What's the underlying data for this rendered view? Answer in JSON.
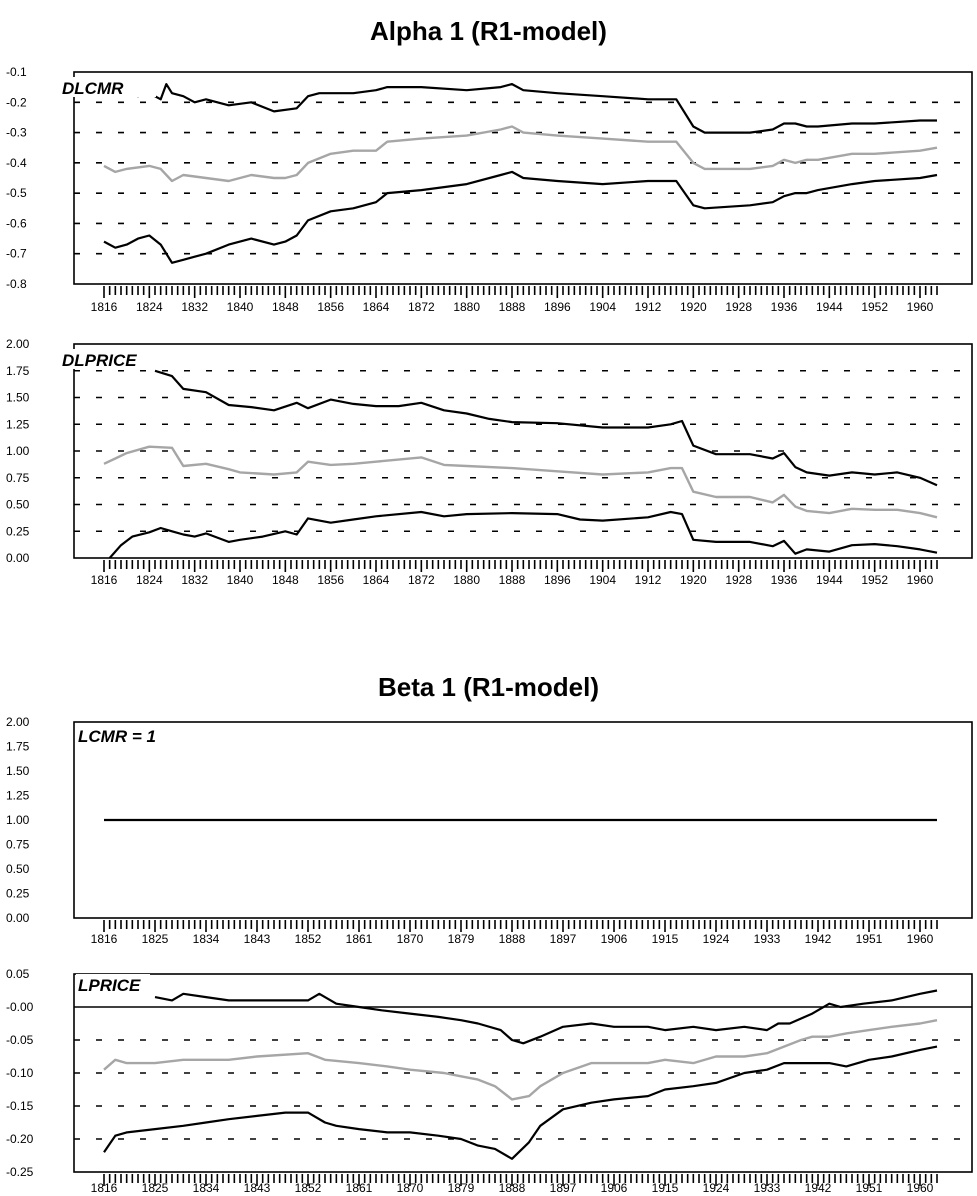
{
  "titles": {
    "alpha": "Alpha 1 (R1-model)",
    "beta": "Beta 1 (R1-model)"
  },
  "colors": {
    "estimate": "#a6a6a6",
    "band": "#000000"
  },
  "chart_data": [
    {
      "type": "line",
      "panel_label": "DLCMR",
      "ylim": [
        -0.8,
        -0.1
      ],
      "yticks": [
        "-0.1",
        "-0.2",
        "-0.3",
        "-0.4",
        "-0.5",
        "-0.6",
        "-0.7",
        "-0.8"
      ],
      "ytick_values": [
        -0.1,
        -0.2,
        -0.3,
        -0.4,
        -0.5,
        -0.6,
        -0.7,
        -0.8
      ],
      "dashed_gridlines": [
        -0.2,
        -0.3,
        -0.4,
        -0.5,
        -0.6,
        -0.7
      ],
      "xlim": [
        1816,
        1963
      ],
      "xticks": [
        "1816",
        "1824",
        "1832",
        "1840",
        "1848",
        "1856",
        "1864",
        "1872",
        "1880",
        "1888",
        "1896",
        "1904",
        "1912",
        "1920",
        "1928",
        "1936",
        "1944",
        "1952",
        "1960"
      ],
      "xtick_values": [
        1816,
        1824,
        1832,
        1840,
        1848,
        1856,
        1864,
        1872,
        1880,
        1888,
        1896,
        1904,
        1912,
        1920,
        1928,
        1936,
        1944,
        1952,
        1960
      ],
      "series": [
        {
          "role": "upper",
          "x": [
            1814,
            1818,
            1820,
            1822,
            1824,
            1826,
            1827,
            1828,
            1830,
            1832,
            1834,
            1838,
            1842,
            1846,
            1850,
            1852,
            1854,
            1856,
            1860,
            1864,
            1866,
            1872,
            1880,
            1886,
            1888,
            1890,
            1896,
            1904,
            1912,
            1917,
            1920,
            1922,
            1930,
            1934,
            1936,
            1938,
            1940,
            1942,
            1948,
            1952,
            1960,
            1963
          ],
          "y": [
            -0.16,
            -0.17,
            -0.17,
            -0.18,
            -0.17,
            -0.19,
            -0.14,
            -0.17,
            -0.18,
            -0.2,
            -0.19,
            -0.21,
            -0.2,
            -0.23,
            -0.22,
            -0.18,
            -0.17,
            -0.17,
            -0.17,
            -0.16,
            -0.15,
            -0.15,
            -0.16,
            -0.15,
            -0.14,
            -0.16,
            -0.17,
            -0.18,
            -0.19,
            -0.19,
            -0.28,
            -0.3,
            -0.3,
            -0.29,
            -0.27,
            -0.27,
            -0.28,
            -0.28,
            -0.27,
            -0.27,
            -0.26,
            -0.26
          ]
        },
        {
          "role": "estimate",
          "x": [
            1816,
            1818,
            1820,
            1824,
            1826,
            1828,
            1830,
            1834,
            1838,
            1842,
            1846,
            1848,
            1850,
            1852,
            1856,
            1860,
            1864,
            1866,
            1872,
            1880,
            1886,
            1888,
            1890,
            1896,
            1904,
            1912,
            1917,
            1920,
            1922,
            1930,
            1934,
            1936,
            1938,
            1940,
            1942,
            1948,
            1952,
            1960,
            1963
          ],
          "y": [
            -0.41,
            -0.43,
            -0.42,
            -0.41,
            -0.42,
            -0.46,
            -0.44,
            -0.45,
            -0.46,
            -0.44,
            -0.45,
            -0.45,
            -0.44,
            -0.4,
            -0.37,
            -0.36,
            -0.36,
            -0.33,
            -0.32,
            -0.31,
            -0.29,
            -0.28,
            -0.3,
            -0.31,
            -0.32,
            -0.33,
            -0.33,
            -0.4,
            -0.42,
            -0.42,
            -0.41,
            -0.39,
            -0.4,
            -0.39,
            -0.39,
            -0.37,
            -0.37,
            -0.36,
            -0.35
          ]
        },
        {
          "role": "lower",
          "x": [
            1816,
            1818,
            1820,
            1822,
            1824,
            1826,
            1828,
            1830,
            1832,
            1834,
            1838,
            1842,
            1846,
            1848,
            1850,
            1852,
            1856,
            1860,
            1864,
            1866,
            1872,
            1880,
            1886,
            1888,
            1890,
            1896,
            1904,
            1912,
            1917,
            1920,
            1922,
            1930,
            1934,
            1936,
            1938,
            1940,
            1942,
            1948,
            1952,
            1960,
            1963
          ],
          "y": [
            -0.66,
            -0.68,
            -0.67,
            -0.65,
            -0.64,
            -0.67,
            -0.73,
            -0.72,
            -0.71,
            -0.7,
            -0.67,
            -0.65,
            -0.67,
            -0.66,
            -0.64,
            -0.59,
            -0.56,
            -0.55,
            -0.53,
            -0.5,
            -0.49,
            -0.47,
            -0.44,
            -0.43,
            -0.45,
            -0.46,
            -0.47,
            -0.46,
            -0.46,
            -0.54,
            -0.55,
            -0.54,
            -0.53,
            -0.51,
            -0.5,
            -0.5,
            -0.49,
            -0.47,
            -0.46,
            -0.45,
            -0.44
          ]
        }
      ]
    },
    {
      "type": "line",
      "panel_label": "DLPRICE",
      "ylim": [
        0.0,
        2.0
      ],
      "yticks": [
        "2.00",
        "1.75",
        "1.50",
        "1.25",
        "1.00",
        "0.75",
        "0.50",
        "0.25",
        "0.00"
      ],
      "ytick_values": [
        2.0,
        1.75,
        1.5,
        1.25,
        1.0,
        0.75,
        0.5,
        0.25,
        0.0
      ],
      "dashed_gridlines": [
        1.75,
        1.5,
        1.25,
        1.0,
        0.75,
        0.5,
        0.25
      ],
      "xlim": [
        1816,
        1963
      ],
      "xticks": [
        "1816",
        "1824",
        "1832",
        "1840",
        "1848",
        "1856",
        "1864",
        "1872",
        "1880",
        "1888",
        "1896",
        "1904",
        "1912",
        "1920",
        "1928",
        "1936",
        "1944",
        "1952",
        "1960"
      ],
      "xtick_values": [
        1816,
        1824,
        1832,
        1840,
        1848,
        1856,
        1864,
        1872,
        1880,
        1888,
        1896,
        1904,
        1912,
        1920,
        1928,
        1936,
        1944,
        1952,
        1960
      ],
      "series": [
        {
          "role": "upper",
          "x": [
            1825,
            1828,
            1830,
            1834,
            1838,
            1842,
            1846,
            1850,
            1852,
            1856,
            1860,
            1864,
            1868,
            1872,
            1876,
            1880,
            1884,
            1888,
            1896,
            1904,
            1912,
            1916,
            1918,
            1920,
            1924,
            1930,
            1934,
            1936,
            1938,
            1940,
            1944,
            1948,
            1952,
            1956,
            1960,
            1963
          ],
          "y": [
            1.75,
            1.7,
            1.58,
            1.55,
            1.43,
            1.41,
            1.38,
            1.45,
            1.4,
            1.48,
            1.44,
            1.42,
            1.42,
            1.45,
            1.38,
            1.35,
            1.3,
            1.27,
            1.26,
            1.22,
            1.22,
            1.25,
            1.28,
            1.05,
            0.97,
            0.97,
            0.93,
            0.98,
            0.85,
            0.8,
            0.77,
            0.8,
            0.78,
            0.8,
            0.75,
            0.68
          ]
        },
        {
          "role": "estimate",
          "x": [
            1816,
            1818,
            1820,
            1824,
            1828,
            1830,
            1834,
            1838,
            1840,
            1846,
            1850,
            1852,
            1856,
            1860,
            1864,
            1872,
            1876,
            1880,
            1888,
            1896,
            1904,
            1912,
            1916,
            1918,
            1920,
            1924,
            1930,
            1934,
            1936,
            1938,
            1940,
            1944,
            1948,
            1952,
            1956,
            1960,
            1963
          ],
          "y": [
            0.88,
            0.93,
            0.98,
            1.04,
            1.03,
            0.86,
            0.88,
            0.83,
            0.8,
            0.78,
            0.8,
            0.9,
            0.87,
            0.88,
            0.9,
            0.94,
            0.87,
            0.86,
            0.84,
            0.81,
            0.78,
            0.8,
            0.84,
            0.84,
            0.62,
            0.57,
            0.57,
            0.52,
            0.59,
            0.48,
            0.44,
            0.42,
            0.46,
            0.45,
            0.45,
            0.42,
            0.38
          ]
        },
        {
          "role": "lower",
          "x": [
            1817,
            1819,
            1821,
            1824,
            1826,
            1828,
            1830,
            1832,
            1834,
            1838,
            1840,
            1844,
            1848,
            1850,
            1852,
            1856,
            1860,
            1864,
            1872,
            1876,
            1880,
            1888,
            1896,
            1900,
            1904,
            1912,
            1916,
            1918,
            1920,
            1924,
            1930,
            1934,
            1936,
            1938,
            1940,
            1944,
            1948,
            1952,
            1956,
            1960,
            1963
          ],
          "y": [
            0.0,
            0.12,
            0.2,
            0.24,
            0.28,
            0.25,
            0.22,
            0.2,
            0.23,
            0.15,
            0.17,
            0.2,
            0.25,
            0.22,
            0.37,
            0.33,
            0.36,
            0.39,
            0.43,
            0.39,
            0.41,
            0.42,
            0.41,
            0.36,
            0.35,
            0.38,
            0.43,
            0.41,
            0.17,
            0.15,
            0.15,
            0.11,
            0.16,
            0.04,
            0.08,
            0.06,
            0.12,
            0.13,
            0.11,
            0.08,
            0.05
          ]
        }
      ]
    },
    {
      "type": "line",
      "panel_label": "LCMR = 1",
      "ylim": [
        0.0,
        2.0
      ],
      "yticks": [
        "2.00",
        "1.75",
        "1.50",
        "1.25",
        "1.00",
        "0.75",
        "0.50",
        "0.25",
        "0.00"
      ],
      "ytick_values": [
        2.0,
        1.75,
        1.5,
        1.25,
        1.0,
        0.75,
        0.5,
        0.25,
        0.0
      ],
      "dashed_gridlines": [],
      "xlim": [
        1816,
        1963
      ],
      "xticks": [
        "1816",
        "1825",
        "1834",
        "1843",
        "1852",
        "1861",
        "1870",
        "1879",
        "1888",
        "1897",
        "1906",
        "1915",
        "1924",
        "1933",
        "1942",
        "1951",
        "1960"
      ],
      "xtick_values": [
        1816,
        1825,
        1834,
        1843,
        1852,
        1861,
        1870,
        1879,
        1888,
        1897,
        1906,
        1915,
        1924,
        1933,
        1942,
        1951,
        1960
      ],
      "series": [
        {
          "role": "upper",
          "x": [
            1816,
            1963
          ],
          "y": [
            1.0,
            1.0
          ]
        }
      ]
    },
    {
      "type": "line",
      "panel_label": "LPRICE",
      "ylim": [
        -0.25,
        0.05
      ],
      "yticks": [
        "0.05",
        "-0.00",
        "-0.05",
        "-0.10",
        "-0.15",
        "-0.20",
        "-0.25"
      ],
      "ytick_values": [
        0.05,
        0.0,
        -0.05,
        -0.1,
        -0.15,
        -0.2,
        -0.25
      ],
      "dashed_gridlines": [
        -0.05,
        -0.1,
        -0.15,
        -0.2
      ],
      "solid_gridlines": [
        0.0
      ],
      "xlim": [
        1816,
        1963
      ],
      "xticks": [
        "1816",
        "1825",
        "1834",
        "1843",
        "1852",
        "1861",
        "1870",
        "1879",
        "1888",
        "1897",
        "1906",
        "1915",
        "1924",
        "1933",
        "1942",
        "1951",
        "1960"
      ],
      "xtick_values": [
        1816,
        1825,
        1834,
        1843,
        1852,
        1861,
        1870,
        1879,
        1888,
        1897,
        1906,
        1915,
        1924,
        1933,
        1942,
        1951,
        1960
      ],
      "series": [
        {
          "role": "upper",
          "x": [
            1825,
            1828,
            1830,
            1834,
            1838,
            1843,
            1852,
            1854,
            1857,
            1861,
            1865,
            1870,
            1875,
            1879,
            1882,
            1886,
            1888,
            1890,
            1893,
            1897,
            1902,
            1906,
            1912,
            1915,
            1920,
            1924,
            1929,
            1933,
            1935,
            1937,
            1941,
            1944,
            1946,
            1950,
            1955,
            1960,
            1963
          ],
          "y": [
            0.015,
            0.01,
            0.02,
            0.015,
            0.01,
            0.01,
            0.01,
            0.02,
            0.005,
            0.0,
            -0.005,
            -0.01,
            -0.015,
            -0.02,
            -0.025,
            -0.035,
            -0.05,
            -0.055,
            -0.045,
            -0.03,
            -0.025,
            -0.03,
            -0.03,
            -0.035,
            -0.03,
            -0.035,
            -0.03,
            -0.035,
            -0.025,
            -0.025,
            -0.01,
            0.005,
            0.0,
            0.005,
            0.01,
            0.02,
            0.025
          ]
        },
        {
          "role": "estimate",
          "x": [
            1816,
            1818,
            1820,
            1825,
            1830,
            1834,
            1838,
            1843,
            1852,
            1855,
            1861,
            1866,
            1870,
            1876,
            1879,
            1882,
            1885,
            1888,
            1891,
            1893,
            1897,
            1902,
            1906,
            1912,
            1915,
            1920,
            1924,
            1929,
            1933,
            1936,
            1939,
            1941,
            1944,
            1947,
            1951,
            1955,
            1960,
            1963
          ],
          "y": [
            -0.095,
            -0.08,
            -0.085,
            -0.085,
            -0.08,
            -0.08,
            -0.08,
            -0.075,
            -0.07,
            -0.08,
            -0.085,
            -0.09,
            -0.095,
            -0.1,
            -0.105,
            -0.11,
            -0.12,
            -0.14,
            -0.135,
            -0.12,
            -0.1,
            -0.085,
            -0.085,
            -0.085,
            -0.08,
            -0.085,
            -0.075,
            -0.075,
            -0.07,
            -0.06,
            -0.05,
            -0.045,
            -0.045,
            -0.04,
            -0.035,
            -0.03,
            -0.025,
            -0.02
          ]
        },
        {
          "role": "lower",
          "x": [
            1816,
            1818,
            1820,
            1825,
            1830,
            1834,
            1838,
            1843,
            1848,
            1852,
            1855,
            1857,
            1861,
            1866,
            1870,
            1875,
            1879,
            1882,
            1885,
            1888,
            1891,
            1893,
            1897,
            1902,
            1906,
            1912,
            1915,
            1920,
            1924,
            1929,
            1933,
            1936,
            1939,
            1941,
            1944,
            1947,
            1951,
            1955,
            1960,
            1963
          ],
          "y": [
            -0.22,
            -0.195,
            -0.19,
            -0.185,
            -0.18,
            -0.175,
            -0.17,
            -0.165,
            -0.16,
            -0.16,
            -0.175,
            -0.18,
            -0.185,
            -0.19,
            -0.19,
            -0.195,
            -0.2,
            -0.21,
            -0.215,
            -0.23,
            -0.205,
            -0.18,
            -0.155,
            -0.145,
            -0.14,
            -0.135,
            -0.125,
            -0.12,
            -0.115,
            -0.1,
            -0.095,
            -0.085,
            -0.085,
            -0.085,
            -0.085,
            -0.09,
            -0.08,
            -0.075,
            -0.065,
            -0.06
          ]
        }
      ]
    }
  ]
}
